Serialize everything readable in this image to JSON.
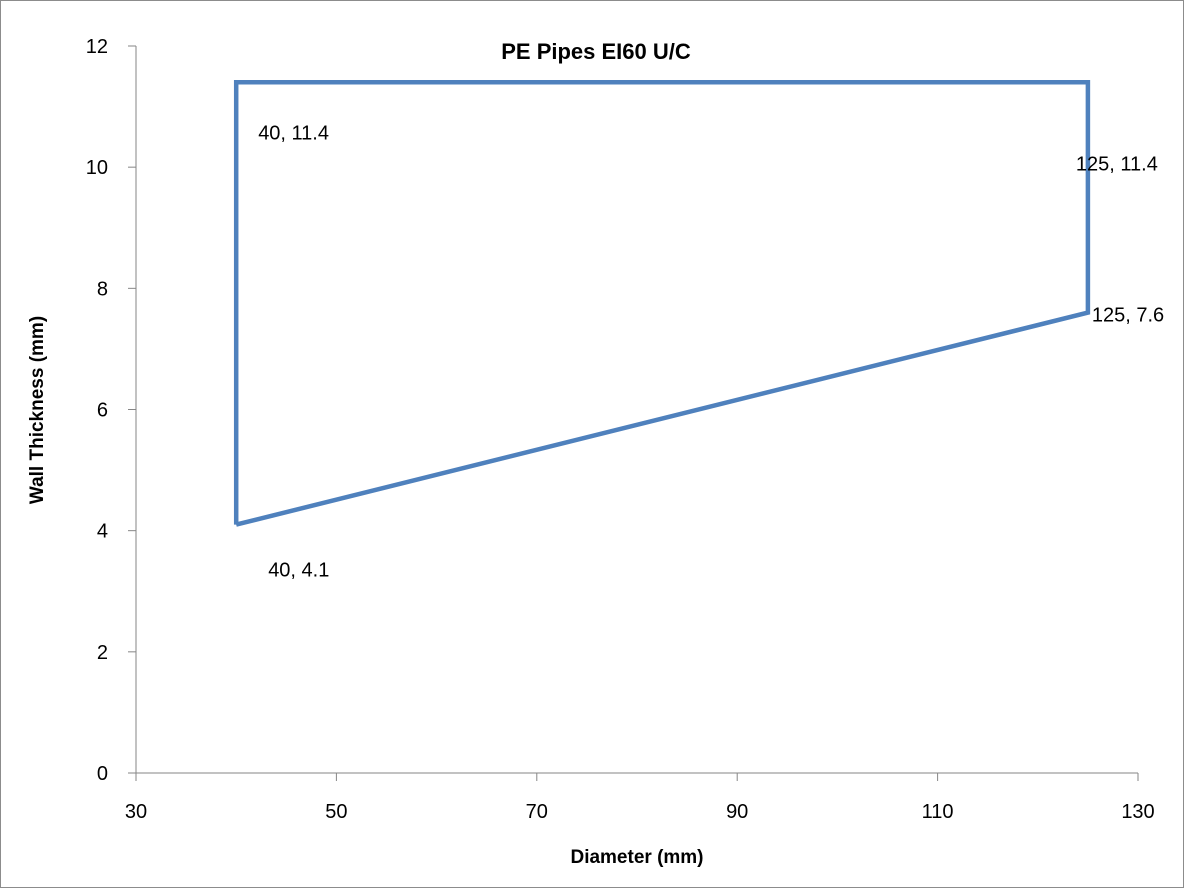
{
  "chart_data": {
    "type": "line",
    "title": "PE Pipes EI60 U/C",
    "xlabel": "Diameter (mm)",
    "ylabel": "Wall Thickness (mm)",
    "xlim": [
      30,
      130
    ],
    "ylim": [
      0,
      12
    ],
    "xticks": [
      30,
      50,
      70,
      90,
      110,
      130
    ],
    "yticks": [
      0,
      2,
      4,
      6,
      8,
      10,
      12
    ],
    "grid": false,
    "series": [
      {
        "color": "#4f81bd",
        "x": [
          40,
          40,
          125,
          125,
          40
        ],
        "y": [
          4.1,
          11.4,
          11.4,
          7.6,
          4.1
        ]
      }
    ],
    "annotations": [
      {
        "text": "40, 11.4",
        "x": 40,
        "y": 11.4
      },
      {
        "text": "125, 11.4",
        "x": 125,
        "y": 11.4
      },
      {
        "text": "125, 7.6",
        "x": 125,
        "y": 7.6
      },
      {
        "text": "40, 4.1",
        "x": 40,
        "y": 4.1
      }
    ]
  }
}
